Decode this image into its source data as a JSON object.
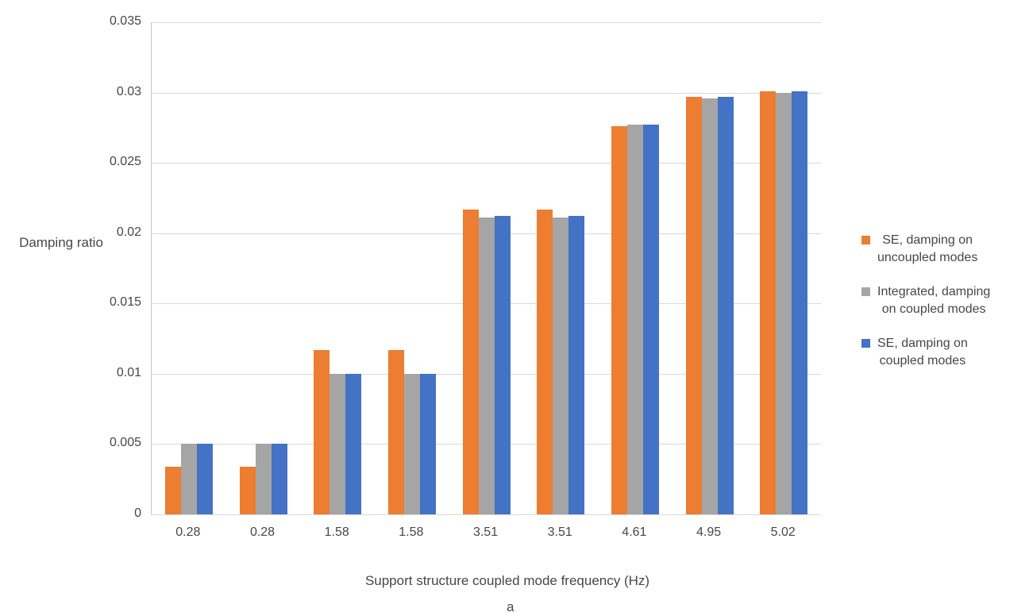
{
  "chart_data": {
    "type": "bar",
    "title": "",
    "xlabel": "Support structure coupled mode frequency (Hz)",
    "ylabel": "Damping ratio",
    "ylim": [
      0,
      0.035
    ],
    "y_tick_step": 0.005,
    "y_ticks": [
      "0.035",
      "0.03",
      "0.025",
      "0.02",
      "0.015",
      "0.01",
      "0.005",
      "0"
    ],
    "grid": true,
    "legend_position": "right",
    "categories": [
      "0.28",
      "0.28",
      "1.58",
      "1.58",
      "3.51",
      "3.51",
      "4.61",
      "4.95",
      "5.02"
    ],
    "series": [
      {
        "name": "SE, damping on uncoupled modes",
        "color": "#ED7D31",
        "values": [
          0.0034,
          0.0034,
          0.0117,
          0.0117,
          0.0217,
          0.0217,
          0.0276,
          0.0297,
          0.0301
        ]
      },
      {
        "name": "Integrated, damping on coupled modes",
        "color": "#A5A5A5",
        "values": [
          0.005,
          0.005,
          0.01,
          0.01,
          0.0211,
          0.0211,
          0.0277,
          0.0296,
          0.03
        ]
      },
      {
        "name": "SE, damping on coupled modes",
        "color": "#4472C4",
        "values": [
          0.005,
          0.005,
          0.01,
          0.01,
          0.0212,
          0.0212,
          0.0277,
          0.0297,
          0.0301
        ]
      }
    ]
  },
  "legend": {
    "items": [
      {
        "label": "SE, damping on\nuncoupled modes",
        "color": "#ED7D31"
      },
      {
        "label": "Integrated, damping\non coupled modes",
        "color": "#A5A5A5"
      },
      {
        "label": "SE, damping on\ncoupled modes",
        "color": "#4472C4"
      }
    ]
  },
  "misc": {
    "partial_caption": "a",
    "gridline_color": "#D9D9D9",
    "axis_line_color": "#C6C6C6",
    "text_color": "#474747"
  }
}
